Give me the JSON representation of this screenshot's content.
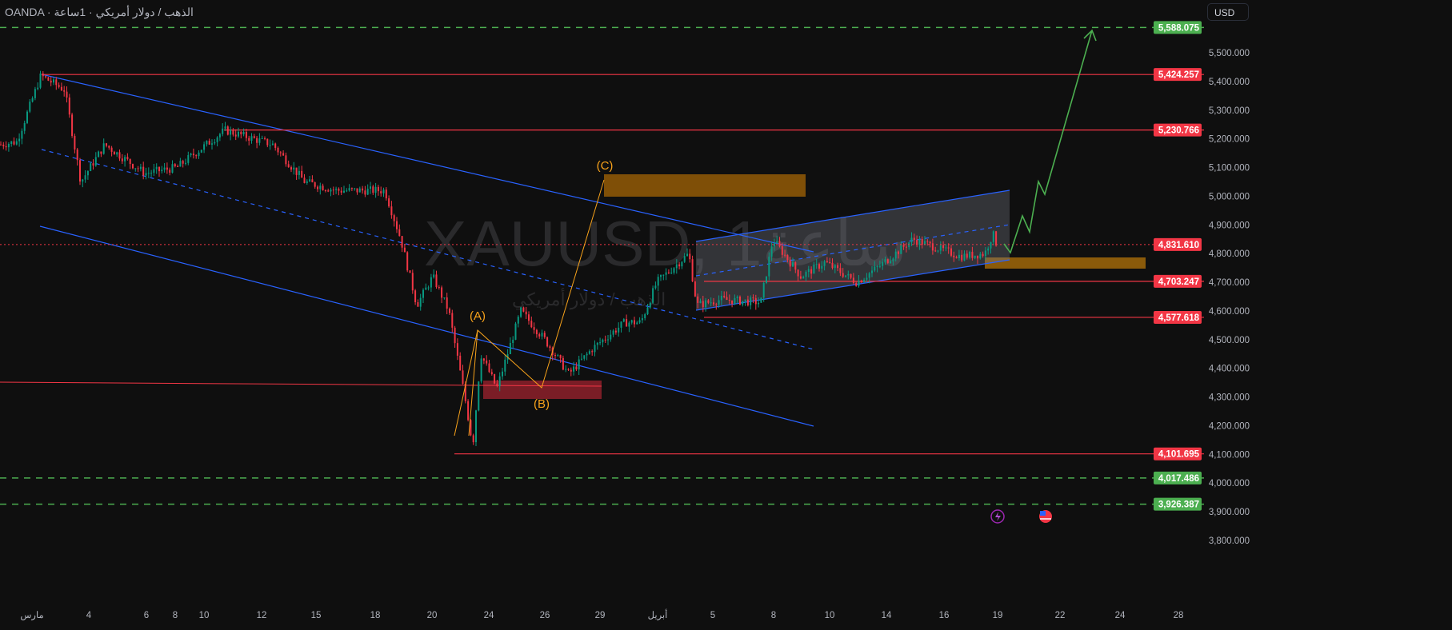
{
  "header": {
    "title": "OANDA · الذهب / دولار أمريكي · 1ساعة",
    "currency_button": "USD"
  },
  "watermark": {
    "symbol": "XAUUSD, 1ساعة",
    "description": "الذهب / دولار أمريكي"
  },
  "colors": {
    "up": "#089981",
    "down": "#f23645",
    "level_red": "#f23645",
    "level_green": "#4caf50",
    "channel": "#2962ff",
    "zone": "#7f4f07",
    "wave": "#f7a21b",
    "background": "#0f0f0f"
  },
  "bottom_icons": [
    "lightning-icon",
    "us-flag-icon"
  ],
  "chart_data": {
    "type": "candlestick",
    "symbol": "XAUUSD",
    "timeframe": "1h",
    "ylim": [
      3760,
      5620
    ],
    "price_ticks": [
      "5,500.000",
      "5,400.000",
      "5,300.000",
      "5,200.000",
      "5,100.000",
      "5,000.000",
      "4,900.000",
      "4,800.000",
      "4,700.000",
      "4,600.000",
      "4,500.000",
      "4,400.000",
      "4,300.000",
      "4,200.000",
      "4,100.000",
      "4,000.000",
      "3,900.000",
      "3,800.000"
    ],
    "time_ticks": [
      "مارس",
      "4",
      "6",
      "8",
      "10",
      "12",
      "15",
      "18",
      "20",
      "24",
      "26",
      "29",
      "أبريل",
      "5",
      "8",
      "10",
      "14",
      "16",
      "19",
      "22",
      "24",
      "28"
    ],
    "approx_price_path": [
      5180,
      5190,
      5420,
      5370,
      5050,
      5180,
      5080,
      5100,
      5230,
      5180,
      5050,
      5020,
      5020,
      4850,
      4620,
      4720,
      4600,
      4300,
      4130,
      4450,
      4330,
      4600,
      4500,
      4380,
      4470,
      4560,
      4560,
      4700,
      4800,
      4620,
      4640,
      4630,
      4850,
      4720,
      4770,
      4700,
      4760,
      4850,
      4790,
      4800,
      4870,
      4830
    ],
    "current_price": {
      "value": 4831.61,
      "label": "4,831.610"
    },
    "levels": [
      {
        "label": "5,588.075",
        "value": 5588.075,
        "style": "green-dashed"
      },
      {
        "label": "5,424.257",
        "value": 5424.257,
        "style": "red"
      },
      {
        "label": "5,230.766",
        "value": 5230.766,
        "style": "red"
      },
      {
        "label": "4,703.247",
        "value": 4703.247,
        "style": "red"
      },
      {
        "label": "4,577.618",
        "value": 4577.618,
        "style": "red"
      },
      {
        "label": "4,101.695",
        "value": 4101.695,
        "style": "red"
      },
      {
        "label": "4,017.486",
        "value": 4017.486,
        "style": "green-dashed"
      },
      {
        "label": "3,926.387",
        "value": 3926.387,
        "style": "green-dashed"
      }
    ],
    "wave_labels": [
      "(A)",
      "(B)",
      "(C)"
    ]
  }
}
